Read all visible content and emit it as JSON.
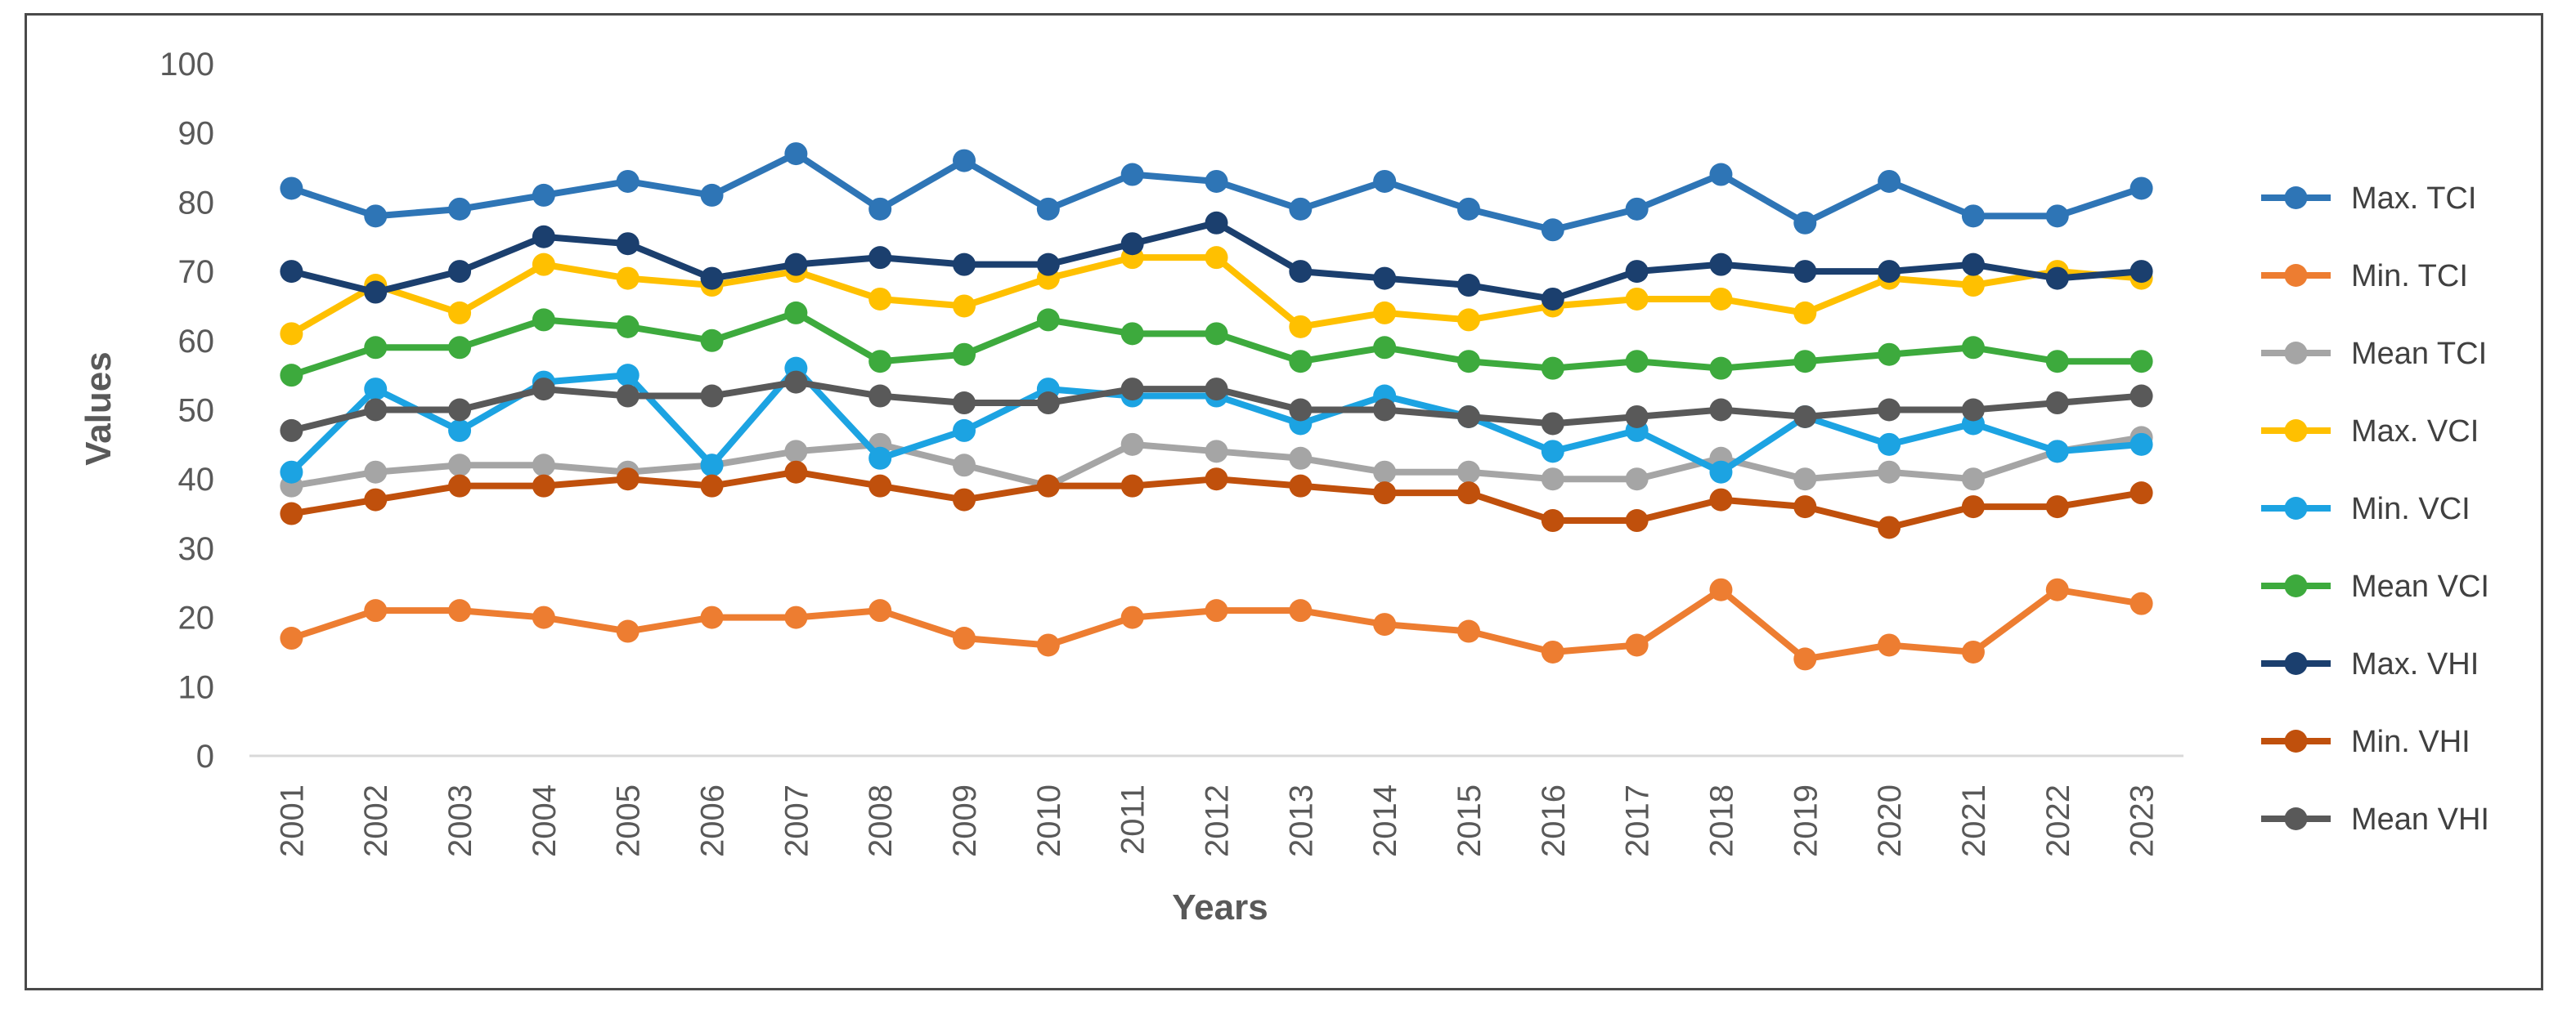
{
  "chart_data": {
    "type": "line",
    "title": "",
    "xlabel": "Years",
    "ylabel": "Values",
    "ylim": [
      0,
      100
    ],
    "yticks": [
      0,
      10,
      20,
      30,
      40,
      50,
      60,
      70,
      80,
      90,
      100
    ],
    "grid": false,
    "legend_position": "right",
    "categories": [
      "2001",
      "2002",
      "2003",
      "2004",
      "2005",
      "2006",
      "2007",
      "2008",
      "2009",
      "2010",
      "2011",
      "2012",
      "2013",
      "2014",
      "2015",
      "2016",
      "2017",
      "2018",
      "2019",
      "2020",
      "2021",
      "2022",
      "2023"
    ],
    "series": [
      {
        "name": "Max. TCI",
        "color": "#2E75B6",
        "values": [
          82,
          78,
          79,
          81,
          83,
          81,
          87,
          79,
          86,
          79,
          84,
          83,
          79,
          83,
          79,
          76,
          79,
          84,
          77,
          83,
          78,
          78,
          82
        ]
      },
      {
        "name": "Min. TCI",
        "color": "#ED7D31",
        "values": [
          17,
          21,
          21,
          20,
          18,
          20,
          20,
          21,
          17,
          16,
          20,
          21,
          21,
          19,
          18,
          15,
          16,
          24,
          14,
          16,
          15,
          24,
          22
        ]
      },
      {
        "name": "Mean TCI",
        "color": "#A5A5A5",
        "values": [
          39,
          41,
          42,
          42,
          41,
          42,
          44,
          45,
          42,
          39,
          45,
          44,
          43,
          41,
          41,
          40,
          40,
          43,
          40,
          41,
          40,
          44,
          46
        ]
      },
      {
        "name": "Max. VCI",
        "color": "#FFC000",
        "values": [
          61,
          68,
          64,
          71,
          69,
          68,
          70,
          66,
          65,
          69,
          72,
          72,
          62,
          64,
          63,
          65,
          66,
          66,
          64,
          69,
          68,
          70,
          69
        ]
      },
      {
        "name": "Min. VCI",
        "color": "#1CA3E2",
        "values": [
          41,
          53,
          47,
          54,
          55,
          42,
          56,
          43,
          47,
          53,
          52,
          52,
          48,
          52,
          49,
          44,
          47,
          41,
          49,
          45,
          48,
          44,
          45
        ]
      },
      {
        "name": "Mean VCI",
        "color": "#3DAA3D",
        "values": [
          55,
          59,
          59,
          63,
          62,
          60,
          64,
          57,
          58,
          63,
          61,
          61,
          57,
          59,
          57,
          56,
          57,
          56,
          57,
          58,
          59,
          57,
          57
        ]
      },
      {
        "name": "Max. VHI",
        "color": "#1B3F6E",
        "values": [
          70,
          67,
          70,
          75,
          74,
          69,
          71,
          72,
          71,
          71,
          74,
          77,
          70,
          69,
          68,
          66,
          70,
          71,
          70,
          70,
          71,
          69,
          70
        ]
      },
      {
        "name": "Min. VHI",
        "color": "#C0500C",
        "values": [
          35,
          37,
          39,
          39,
          40,
          39,
          41,
          39,
          37,
          39,
          39,
          40,
          39,
          38,
          38,
          34,
          34,
          37,
          36,
          33,
          36,
          36,
          38
        ]
      },
      {
        "name": "Mean VHI",
        "color": "#595959",
        "values": [
          47,
          50,
          50,
          53,
          52,
          52,
          54,
          52,
          51,
          51,
          53,
          53,
          50,
          50,
          49,
          48,
          49,
          50,
          49,
          50,
          50,
          51,
          52
        ]
      }
    ]
  }
}
